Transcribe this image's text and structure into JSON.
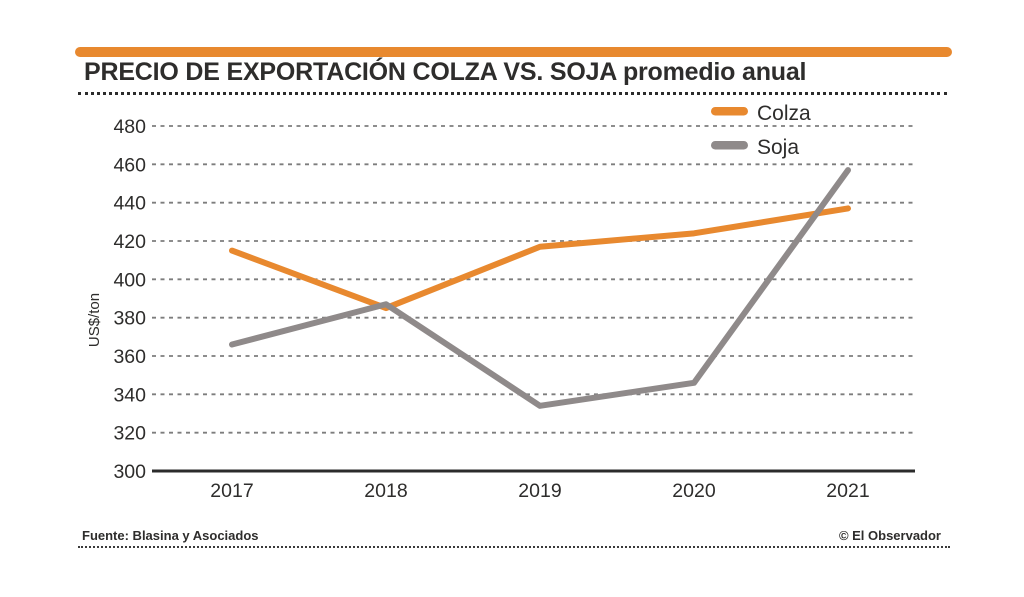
{
  "header": {
    "title": "PRECIO DE EXPORTACIÓN COLZA VS. SOJA promedio anual"
  },
  "footer": {
    "source": "Fuente: Blasina y Asociados",
    "credit": "© El Observador"
  },
  "colors": {
    "accent_orange": "#E8892F",
    "soja_gray": "#8F8A8A",
    "text_dark": "#2E2D2C"
  },
  "chart_data": {
    "type": "line",
    "title": "PRECIO DE EXPORTACIÓN COLZA VS. SOJA promedio anual",
    "x": [
      "2017",
      "2018",
      "2019",
      "2020",
      "2021"
    ],
    "series": [
      {
        "name": "Colza",
        "color": "#E8892F",
        "values": [
          415,
          385,
          417,
          424,
          437
        ]
      },
      {
        "name": "Soja",
        "color": "#8F8A8A",
        "values": [
          366,
          387,
          334,
          346,
          457
        ]
      }
    ],
    "xlabel": "",
    "ylabel": "US$/ton",
    "ylim": [
      300,
      480
    ],
    "ytick_step": 20,
    "grid": "horizontal-dashed",
    "legend_position": "top-right-inside"
  }
}
